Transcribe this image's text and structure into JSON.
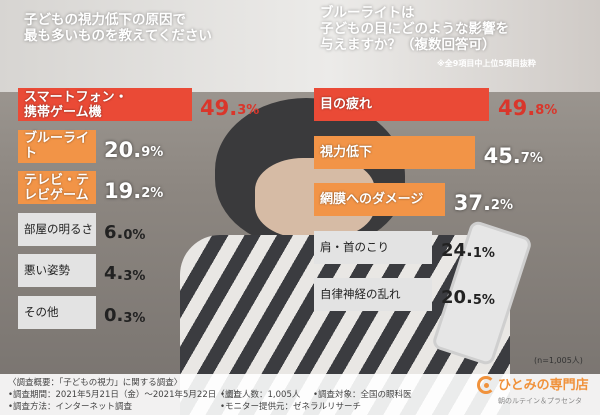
{
  "colors": {
    "highlight": "#ea4a36",
    "orange": "#f29447",
    "gray": "#e3e3e3",
    "pct_dark": "#d9362b"
  },
  "left_question": "子どもの視力低下の原因で\n最も多いものを教えてください",
  "right_question": "ブルーライトは\n子どもの目にどのような影響を\n与えますか？（複数回答可）",
  "right_note": "※全9項目中上位5項目抜粋",
  "sample_size": "(n=1,005人)",
  "footer": {
    "title": "〈調査概要：「子どもの視力」に関する調査〉",
    "period": "•調査期間：2021年5月21日（金）〜2021年5月22日（土）",
    "method": "•調査方法：インターネット調査",
    "respondents": "•調査人数：1,005人",
    "monitor": "•モニター提供元：ゼネラルリサーチ",
    "target": "•調査対象：全国の眼科医"
  },
  "logo": {
    "name": "ひとみの専門店",
    "tagline": "朝のルテイン＆プラセンタ"
  },
  "chart_data": [
    {
      "type": "bar",
      "orientation": "horizontal",
      "title": "子どもの視力低下の原因で最も多いものを教えてください",
      "categories": [
        "スマートフォン・\n携帯ゲーム機",
        "ブルーライト",
        "テレビ・テレビゲーム",
        "部屋の明るさ",
        "悪い姿勢",
        "その他"
      ],
      "values": [
        49.3,
        20.9,
        19.2,
        6.0,
        4.3,
        0.3
      ],
      "labels": [
        [
          "49.",
          "3%"
        ],
        [
          "20.",
          "9%"
        ],
        [
          "19.",
          "2%"
        ],
        [
          "6.",
          "0%"
        ],
        [
          "4.",
          "3%"
        ],
        [
          "0.",
          "3%"
        ]
      ],
      "styles": [
        "highlight",
        "orange",
        "orange",
        "gray",
        "gray",
        "gray"
      ],
      "unit": "%"
    },
    {
      "type": "bar",
      "orientation": "horizontal",
      "title": "ブルーライトは子どもの目にどのような影響を与えますか？（複数回答可）",
      "categories": [
        "目の疲れ",
        "視力低下",
        "網膜へのダメージ",
        "肩・首のこり",
        "自律神経の乱れ"
      ],
      "values": [
        49.8,
        45.7,
        37.2,
        24.1,
        20.5
      ],
      "labels": [
        [
          "49.",
          "8%"
        ],
        [
          "45.",
          "7%"
        ],
        [
          "37.",
          "2%"
        ],
        [
          "24.",
          "1%"
        ],
        [
          "20.",
          "5%"
        ]
      ],
      "styles": [
        "highlight",
        "orange",
        "orange",
        "gray",
        "gray"
      ],
      "unit": "%"
    }
  ]
}
